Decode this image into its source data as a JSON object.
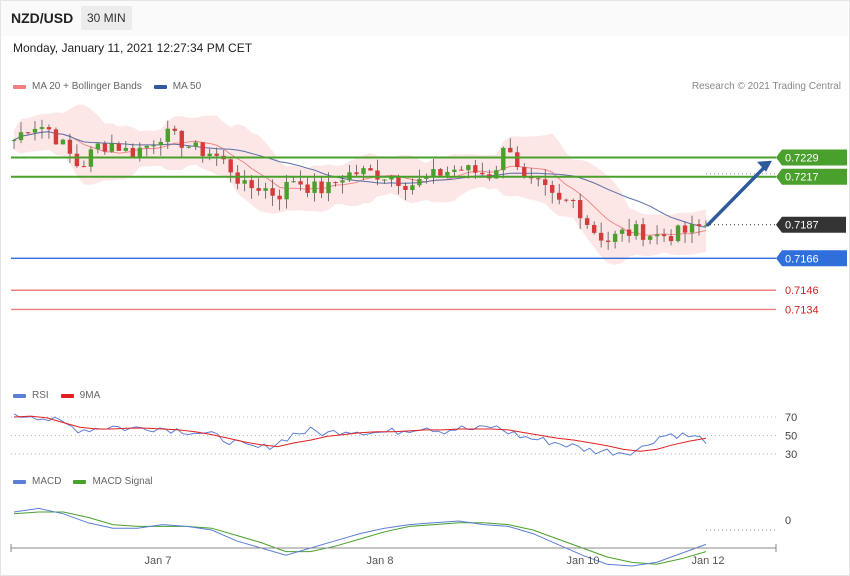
{
  "header": {
    "pair": "NZD/USD",
    "timeframe": "30 MIN",
    "datetime": "Monday, January 11, 2021 12:27:34 PM CET"
  },
  "legend_main": [
    {
      "label": "MA 20 + Bollinger Bands",
      "color": "#f08080"
    },
    {
      "label": "MA 50",
      "color": "#2e5a9c"
    }
  ],
  "credit": "Research © 2021 Trading Central",
  "legend_rsi": [
    {
      "label": "RSI",
      "color": "#5b7fd6"
    },
    {
      "label": "9MA",
      "color": "#e02020"
    }
  ],
  "legend_macd": [
    {
      "label": "MACD",
      "color": "#5b7fd6"
    },
    {
      "label": "MACD Signal",
      "color": "#4aa02c"
    }
  ],
  "chart_data": {
    "type": "candlestick",
    "x_ticks": [
      "Jan 7",
      "Jan 8",
      "Jan 10",
      "Jan 12"
    ],
    "price_range": [
      0.7118,
      0.7265
    ],
    "levels": [
      {
        "label": "0.7229",
        "value": 0.7229,
        "style": "resistance",
        "color": "#4aa02c"
      },
      {
        "label": "0.7217",
        "value": 0.7217,
        "style": "resistance",
        "color": "#4aa02c"
      },
      {
        "label": "0.7187",
        "value": 0.7187,
        "style": "last",
        "color": "#333333"
      },
      {
        "label": "0.7166",
        "value": 0.7166,
        "style": "pivot",
        "color": "#2f6fdc"
      },
      {
        "label": "0.7146",
        "value": 0.7146,
        "style": "support",
        "color": "#f08080"
      },
      {
        "label": "0.7134",
        "value": 0.7134,
        "style": "support",
        "color": "#f08080"
      }
    ],
    "close_path": [
      0.724,
      0.725,
      0.7248,
      0.7236,
      0.7222,
      0.7236,
      0.7238,
      0.7232,
      0.7236,
      0.7244,
      0.724,
      0.7234,
      0.7232,
      0.7224,
      0.721,
      0.7211,
      0.7205,
      0.7216,
      0.721,
      0.7209,
      0.7218,
      0.722,
      0.7219,
      0.7217,
      0.7212,
      0.7215,
      0.722,
      0.7222,
      0.722,
      0.7218,
      0.7239,
      0.7214,
      0.721,
      0.72,
      0.7202,
      0.7185,
      0.7177,
      0.7182,
      0.7183,
      0.718,
      0.7181,
      0.7183,
      0.7187
    ],
    "rsi": {
      "ticks": [
        "70",
        "50",
        "30"
      ],
      "rsi_values": [
        70,
        73,
        68,
        63,
        56,
        58,
        60,
        57,
        59,
        58,
        56,
        54,
        50,
        45,
        38,
        36,
        42,
        52,
        55,
        52,
        56,
        55,
        53,
        54,
        57,
        60,
        55,
        58,
        56,
        60,
        54,
        48,
        45,
        42,
        38,
        34,
        33,
        32,
        35,
        48,
        52,
        49,
        45
      ],
      "ma_values": [
        70,
        71,
        69,
        64,
        59,
        57,
        57,
        58,
        58,
        57,
        56,
        54,
        51,
        47,
        43,
        40,
        38,
        42,
        45,
        49,
        51,
        53,
        54,
        54,
        55,
        56,
        56,
        57,
        57,
        57,
        56,
        53,
        50,
        47,
        45,
        42,
        39,
        35,
        33,
        35,
        40,
        44,
        47
      ]
    },
    "macd": {
      "ticks": [
        "0"
      ],
      "macd_values": [
        0.001,
        0.0012,
        0.0009,
        0.0004,
        0.0001,
        0.0001,
        0.0003,
        0.0002,
        0.0,
        -0.0006,
        -0.001,
        -0.0014,
        -0.001,
        -0.0006,
        -0.0002,
        0.0001,
        0.0003,
        0.0004,
        0.0005,
        0.0003,
        0.0002,
        -0.0002,
        -0.0008,
        -0.0014,
        -0.0019,
        -0.002,
        -0.0018,
        -0.0013,
        -0.0008
      ],
      "signal_values": [
        0.0009,
        0.001,
        0.001,
        0.0007,
        0.0003,
        0.0002,
        0.0002,
        0.0002,
        0.0001,
        -0.0003,
        -0.0007,
        -0.0012,
        -0.0012,
        -0.0009,
        -0.0005,
        -0.0001,
        0.0002,
        0.0003,
        0.0004,
        0.0004,
        0.0003,
        0.0,
        -0.0005,
        -0.001,
        -0.0015,
        -0.0018,
        -0.0019,
        -0.0016,
        -0.0012
      ]
    }
  }
}
